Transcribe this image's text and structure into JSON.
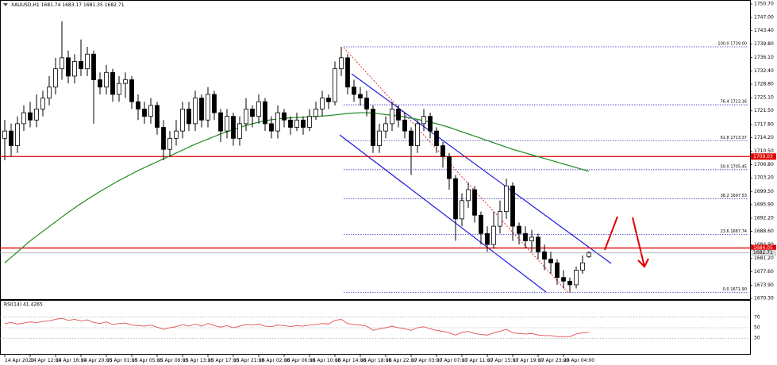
{
  "chart_data": {
    "type": "candlestick",
    "title": "XAUUSD,H1 1681.74 1683.17 1681.35 1682.71",
    "categories": [
      "14 Apr 2020",
      null,
      null,
      null,
      "14 Apr 12:00",
      null,
      null,
      null,
      "14 Apr 16:00",
      null,
      null,
      null,
      "14 Apr 20:00",
      null,
      null,
      null,
      "15 Apr 01:00",
      null,
      null,
      null,
      "15 Apr 05:00",
      null,
      null,
      null,
      "15 Apr 09:00",
      null,
      null,
      null,
      "15 Apr 13:00",
      null,
      null,
      null,
      "15 Apr 17:00",
      null,
      null,
      null,
      "15 Apr 21:00",
      null,
      null,
      null,
      "16 Apr 02:00",
      null,
      null,
      null,
      "16 Apr 06:00",
      null,
      null,
      null,
      "16 Apr 10:00",
      null,
      null,
      null,
      "16 Apr 14:00",
      null,
      null,
      null,
      "16 Apr 18:00",
      null,
      null,
      null,
      "16 Apr 22:00",
      null,
      null,
      null,
      "17 Apr 03:00",
      null,
      null,
      null,
      "17 Apr 07:00",
      null,
      null,
      null,
      "17 Apr 11:00",
      null,
      null,
      null,
      "17 Apr 15:00",
      null,
      null,
      null,
      "17 Apr 19:00",
      null,
      null,
      null,
      "17 Apr 23:00",
      null,
      null,
      null,
      "20 Apr 04:00",
      null,
      null,
      null,
      null
    ],
    "open": [
      1714,
      1716,
      1712,
      1718,
      1721,
      1719,
      1722,
      1725,
      1728,
      1733,
      1736,
      1731,
      1735,
      1733,
      1737,
      1730,
      1728,
      1732,
      1726,
      1729,
      1730,
      1724,
      1722,
      1720,
      1723,
      1717,
      1711,
      1714,
      1716,
      1722,
      1718,
      1725,
      1719,
      1726,
      1721,
      1716,
      1720,
      1714,
      1718,
      1722,
      1720,
      1724,
      1718,
      1716,
      1721,
      1719,
      1717,
      1719,
      1717,
      1720,
      1722,
      1725,
      1724,
      1733,
      1736,
      1728,
      1726,
      1725,
      1722,
      1712,
      1716,
      1718,
      1722,
      1719,
      1716,
      1712,
      1718,
      1720,
      1716,
      1712,
      1709,
      1703,
      1692,
      1697,
      1700,
      1693,
      1688,
      1685,
      1690,
      1694,
      1701,
      1690,
      1688,
      1686,
      1687,
      1683,
      1681,
      1680,
      1676,
      1675,
      1674,
      1678,
      1681.74
    ],
    "high": [
      1719,
      1718,
      1720,
      1723,
      1724,
      1726,
      1727,
      1731,
      1736,
      1746,
      1738,
      1737,
      1741,
      1739,
      1738,
      1732,
      1734,
      1733,
      1731,
      1732,
      1731,
      1726,
      1724,
      1725,
      1724,
      1719,
      1716,
      1719,
      1724,
      1724,
      1727,
      1726,
      1728,
      1727,
      1722,
      1722,
      1721,
      1720,
      1725,
      1723,
      1726,
      1725,
      1720,
      1723,
      1722,
      1720,
      1721,
      1720,
      1722,
      1724,
      1727,
      1726,
      1735,
      1739,
      1737,
      1730,
      1728,
      1727,
      1723,
      1718,
      1720,
      1724,
      1723,
      1721,
      1717,
      1719,
      1722,
      1721,
      1717,
      1713,
      1710,
      1704,
      1699,
      1702,
      1701,
      1694,
      1690,
      1694,
      1697,
      1703,
      1702,
      1691,
      1690,
      1689,
      1688,
      1685,
      1683,
      1681,
      1678,
      1676,
      1679,
      1682,
      1683.17
    ],
    "low": [
      1708,
      1709,
      1710,
      1716,
      1717,
      1717,
      1720,
      1723,
      1726,
      1730,
      1729,
      1729,
      1731,
      1731,
      1718,
      1726,
      1726,
      1724,
      1724,
      1725,
      1722,
      1719,
      1718,
      1718,
      1715,
      1708,
      1709,
      1712,
      1714,
      1716,
      1716,
      1717,
      1717,
      1719,
      1713,
      1714,
      1712,
      1712,
      1716,
      1717,
      1718,
      1716,
      1714,
      1714,
      1717,
      1715,
      1716,
      1715,
      1716,
      1719,
      1720,
      1722,
      1723,
      1731,
      1726,
      1724,
      1723,
      1720,
      1710,
      1710,
      1714,
      1716,
      1717,
      1714,
      1704,
      1710,
      1716,
      1714,
      1710,
      1706,
      1700,
      1686,
      1690,
      1695,
      1691,
      1685,
      1683,
      1684,
      1688,
      1692,
      1686,
      1685,
      1684,
      1683,
      1681,
      1678,
      1677,
      1674,
      1673,
      1671.9,
      1673,
      1677,
      1681.35
    ],
    "close": [
      1716,
      1712,
      1718,
      1721,
      1719,
      1722,
      1725,
      1728,
      1733,
      1736,
      1731,
      1735,
      1733,
      1737,
      1730,
      1728,
      1732,
      1726,
      1729,
      1730,
      1724,
      1722,
      1720,
      1723,
      1717,
      1711,
      1714,
      1716,
      1722,
      1718,
      1725,
      1719,
      1726,
      1721,
      1716,
      1720,
      1714,
      1718,
      1722,
      1720,
      1724,
      1718,
      1716,
      1721,
      1719,
      1717,
      1719,
      1717,
      1720,
      1722,
      1725,
      1724,
      1733,
      1736,
      1728,
      1726,
      1725,
      1722,
      1712,
      1716,
      1718,
      1722,
      1719,
      1716,
      1712,
      1718,
      1720,
      1716,
      1712,
      1709,
      1703,
      1692,
      1697,
      1700,
      1693,
      1688,
      1685,
      1690,
      1694,
      1701,
      1690,
      1688,
      1686,
      1687,
      1683,
      1681,
      1680,
      1676,
      1675,
      1674,
      1678,
      1680,
      1682.71
    ],
    "color": "#000000",
    "ma": {
      "color": "#1a8a1a",
      "values": [
        1680,
        1681.5,
        1683,
        1684.5,
        1686,
        1687.3,
        1688.6,
        1689.9,
        1691.2,
        1692.5,
        1693.8,
        1695,
        1696.2,
        1697.3,
        1698.4,
        1699.5,
        1700.5,
        1701.5,
        1702.5,
        1703.4,
        1704.3,
        1705.2,
        1706,
        1706.8,
        1707.6,
        1708.4,
        1709.2,
        1710,
        1710.8,
        1711.6,
        1712.4,
        1713.1,
        1713.8,
        1714.5,
        1715.2,
        1715.8,
        1716.4,
        1717,
        1717.5,
        1718,
        1718.4,
        1718.8,
        1719.1,
        1719.3,
        1719.5,
        1719.6,
        1719.7,
        1719.8,
        1719.9,
        1720,
        1720.1,
        1720.2,
        1720.4,
        1720.6,
        1720.8,
        1720.9,
        1721,
        1721,
        1720.9,
        1720.7,
        1720.5,
        1720.3,
        1720.1,
        1719.8,
        1719.5,
        1719.2,
        1718.8,
        1718.4,
        1718,
        1717.5,
        1717,
        1716.4,
        1715.8,
        1715.2,
        1714.6,
        1714,
        1713.4,
        1712.8,
        1712.2,
        1711.6,
        1711,
        1710.5,
        1710,
        1709.5,
        1709,
        1708.5,
        1708,
        1707.5,
        1707,
        1706.5,
        1706,
        1705.5,
        1705
      ]
    },
    "ylim": [
      1670.3,
      1750.7
    ],
    "yticks": [
      {
        "value": 1750.7,
        "label": "1750.70"
      },
      {
        "value": 1747,
        "label": "1747.00"
      },
      {
        "value": 1743.4,
        "label": "1743.40"
      },
      {
        "value": 1739.8,
        "label": "1739.80"
      },
      {
        "value": 1736.1,
        "label": "1736.10"
      },
      {
        "value": 1732.4,
        "label": "1732.40"
      },
      {
        "value": 1728.8,
        "label": "1728.80"
      },
      {
        "value": 1725.1,
        "label": "1725.10"
      },
      {
        "value": 1721.5,
        "label": "1721.50"
      },
      {
        "value": 1717.8,
        "label": "1717.80"
      },
      {
        "value": 1714.2,
        "label": "1714.20"
      },
      {
        "value": 1710.5,
        "label": "1710.50"
      },
      {
        "value": 1706.8,
        "label": "1706.80"
      },
      {
        "value": 1703.2,
        "label": "1703.20"
      },
      {
        "value": 1699.5,
        "label": "1699.50"
      },
      {
        "value": 1695.9,
        "label": "1695.90"
      },
      {
        "value": 1692.2,
        "label": "1692.20"
      },
      {
        "value": 1688.6,
        "label": "1688.60"
      },
      {
        "value": 1684.9,
        "label": "1684.90"
      },
      {
        "value": 1681.2,
        "label": "1681.20"
      },
      {
        "value": 1677.6,
        "label": "1677.60"
      },
      {
        "value": 1673.9,
        "label": "1673.90"
      },
      {
        "value": 1670.3,
        "label": "1670.30"
      }
    ],
    "fib_levels": [
      {
        "value": 1739.0,
        "label": "100.0 1739.00"
      },
      {
        "value": 1723.16,
        "label": "76.4 1723.16"
      },
      {
        "value": 1713.37,
        "label": "61.8 1713.37"
      },
      {
        "value": 1705.45,
        "label": "50.0 1705.45"
      },
      {
        "value": 1697.53,
        "label": "38.2 1697.53"
      },
      {
        "value": 1687.74,
        "label": "23.6 1687.74"
      },
      {
        "value": 1671.9,
        "label": "0.0 1671.90"
      }
    ],
    "fib_color": "#3434c8",
    "hlines": [
      {
        "value": 1709.03,
        "label": "1709.03",
        "color": "#e00000"
      },
      {
        "value": 1684.05,
        "label": "1684.05",
        "color": "#e00000"
      }
    ],
    "price_line": {
      "value": 1682.71,
      "label": "1682.71",
      "color": "#a0a0a0"
    },
    "rsi": {
      "label": "RSI(14) 41.4265",
      "color": "#e05050",
      "ylim": [
        0,
        100
      ],
      "yticks": [
        70,
        50,
        30
      ],
      "values": [
        58,
        60,
        57,
        59,
        61,
        60,
        62,
        63,
        66,
        68,
        64,
        66,
        63,
        65,
        60,
        58,
        61,
        56,
        58,
        59,
        55,
        54,
        53,
        55,
        51,
        47,
        50,
        52,
        56,
        53,
        57,
        53,
        58,
        54,
        51,
        54,
        50,
        53,
        56,
        55,
        57,
        53,
        52,
        55,
        54,
        52,
        54,
        53,
        55,
        56,
        58,
        57,
        64,
        66,
        58,
        56,
        55,
        53,
        45,
        48,
        50,
        53,
        50,
        48,
        45,
        50,
        52,
        48,
        45,
        43,
        40,
        36,
        41,
        43,
        39,
        37,
        36,
        40,
        43,
        47,
        40,
        39,
        38,
        39,
        36,
        35,
        35,
        33,
        33,
        33,
        38,
        40,
        41.4265
      ]
    }
  }
}
